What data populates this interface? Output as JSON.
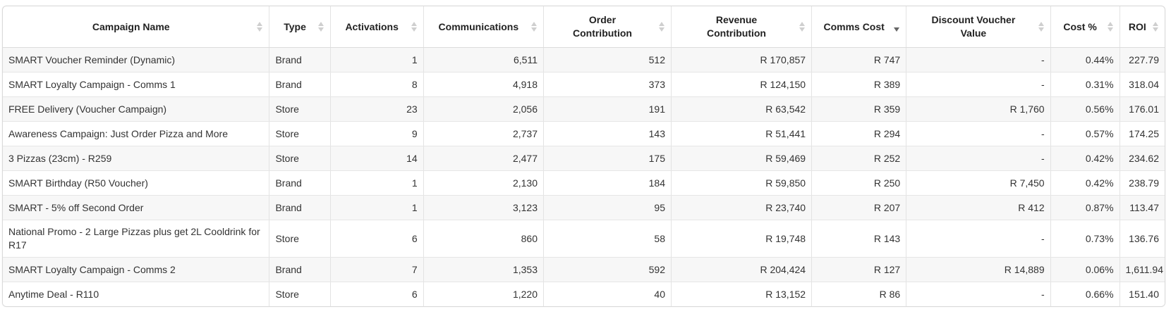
{
  "table": {
    "columns": [
      {
        "key": "campaign_name",
        "label": "Campaign Name",
        "align": "left",
        "sorted": false
      },
      {
        "key": "type",
        "label": "Type",
        "align": "left",
        "sorted": false
      },
      {
        "key": "activations",
        "label": "Activations",
        "align": "right",
        "sorted": false
      },
      {
        "key": "communications",
        "label": "Communications",
        "align": "right",
        "sorted": false
      },
      {
        "key": "order_contribution",
        "label": "Order Contribution",
        "align": "right",
        "sorted": false
      },
      {
        "key": "revenue_contribution",
        "label": "Revenue Contribution",
        "align": "right",
        "sorted": false
      },
      {
        "key": "comms_cost",
        "label": "Comms Cost",
        "align": "right",
        "sorted": true,
        "sort_direction": "descending"
      },
      {
        "key": "discount_voucher_value",
        "label": "Discount Voucher Value",
        "align": "right",
        "sorted": false
      },
      {
        "key": "cost_pct",
        "label": "Cost %",
        "align": "right",
        "sorted": false
      },
      {
        "key": "roi",
        "label": "ROI",
        "align": "right",
        "sorted": false
      }
    ],
    "rows": [
      [
        "SMART Voucher Reminder (Dynamic)",
        "Brand",
        "1",
        "6,511",
        "512",
        "R 170,857",
        "R 747",
        "-",
        "0.44%",
        "227.79"
      ],
      [
        "SMART Loyalty Campaign - Comms 1",
        "Brand",
        "8",
        "4,918",
        "373",
        "R 124,150",
        "R 389",
        "-",
        "0.31%",
        "318.04"
      ],
      [
        "FREE Delivery (Voucher Campaign)",
        "Store",
        "23",
        "2,056",
        "191",
        "R 63,542",
        "R 359",
        "R 1,760",
        "0.56%",
        "176.01"
      ],
      [
        "Awareness Campaign: Just Order Pizza and More",
        "Store",
        "9",
        "2,737",
        "143",
        "R 51,441",
        "R 294",
        "-",
        "0.57%",
        "174.25"
      ],
      [
        "3 Pizzas (23cm) - R259",
        "Store",
        "14",
        "2,477",
        "175",
        "R 59,469",
        "R 252",
        "-",
        "0.42%",
        "234.62"
      ],
      [
        "SMART Birthday (R50 Voucher)",
        "Brand",
        "1",
        "2,130",
        "184",
        "R 59,850",
        "R 250",
        "R 7,450",
        "0.42%",
        "238.79"
      ],
      [
        "SMART - 5% off Second Order",
        "Brand",
        "1",
        "3,123",
        "95",
        "R 23,740",
        "R 207",
        "R 412",
        "0.87%",
        "113.47"
      ],
      [
        "National Promo - 2 Large Pizzas plus get 2L Cooldrink for R17",
        "Store",
        "6",
        "860",
        "58",
        "R 19,748",
        "R 143",
        "-",
        "0.73%",
        "136.76"
      ],
      [
        "SMART Loyalty Campaign - Comms 2",
        "Brand",
        "7",
        "1,353",
        "592",
        "R 204,424",
        "R 127",
        "R 14,889",
        "0.06%",
        "1,611.94"
      ],
      [
        "Anytime Deal - R110",
        "Store",
        "6",
        "1,220",
        "40",
        "R 13,152",
        "R 86",
        "-",
        "0.66%",
        "151.40"
      ]
    ]
  },
  "colors": {
    "header_bg": "#ffffff",
    "row_stripe": "#f7f7f7",
    "border": "#e3e3e3",
    "sort_inactive": "#cfcfcf",
    "sort_active": "#666666"
  }
}
